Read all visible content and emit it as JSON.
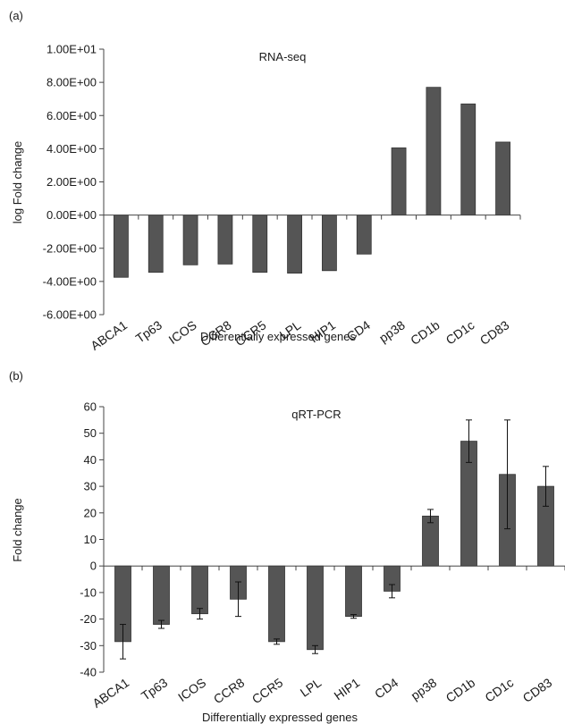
{
  "chart_data": [
    {
      "panel_label": "(a)",
      "type": "bar",
      "title": "RNA-seq",
      "xlabel": "Differentially expressed genes",
      "ylabel": "log Fold change",
      "categories": [
        "ABCA1",
        "Tp63",
        "ICOS",
        "CCR8",
        "CCR5",
        "LPL",
        "HIP1",
        "CD4",
        "pp38",
        "CD1b",
        "CD1c",
        "CD83"
      ],
      "values": [
        -3.75,
        -3.45,
        -3.0,
        -2.95,
        -3.45,
        -3.5,
        -3.35,
        -2.35,
        4.05,
        7.7,
        6.7,
        4.4
      ],
      "ylim": [
        -6,
        10
      ],
      "yticks": [
        10,
        8,
        6,
        4,
        2,
        0,
        -2,
        -4,
        -6
      ],
      "ytick_labels": [
        "1.00E+01",
        "8.00E+00",
        "6.00E+00",
        "4.00E+00",
        "2.00E+00",
        "0.00E+00",
        "-2.00E+00",
        "-4.00E+00",
        "-6.00E+00"
      ],
      "grid": false,
      "bar_color": "#555555"
    },
    {
      "panel_label": "(b)",
      "type": "bar",
      "title": "qRT-PCR",
      "xlabel": "Differentially expressed genes",
      "ylabel": "Fold change",
      "categories": [
        "ABCA1",
        "Tp63",
        "ICOS",
        "CCR8",
        "CCR5",
        "LPL",
        "HIP1",
        "CD4",
        "pp38",
        "CD1b",
        "CD1c",
        "CD83"
      ],
      "values": [
        -28.5,
        -22.0,
        -18.0,
        -12.5,
        -28.5,
        -31.5,
        -19.0,
        -9.5,
        18.8,
        47.0,
        34.5,
        30.0
      ],
      "error": [
        6.5,
        1.5,
        2.0,
        6.5,
        1.0,
        1.5,
        0.7,
        2.5,
        2.5,
        8.0,
        20.5,
        7.5
      ],
      "ylim": [
        -40,
        60
      ],
      "yticks": [
        60,
        50,
        40,
        30,
        20,
        10,
        0,
        -10,
        -20,
        -30,
        -40
      ],
      "ytick_labels": [
        "60",
        "50",
        "40",
        "30",
        "20",
        "10",
        "0",
        "-10",
        "-20",
        "-30",
        "-40"
      ],
      "grid": false,
      "bar_color": "#555555"
    }
  ]
}
